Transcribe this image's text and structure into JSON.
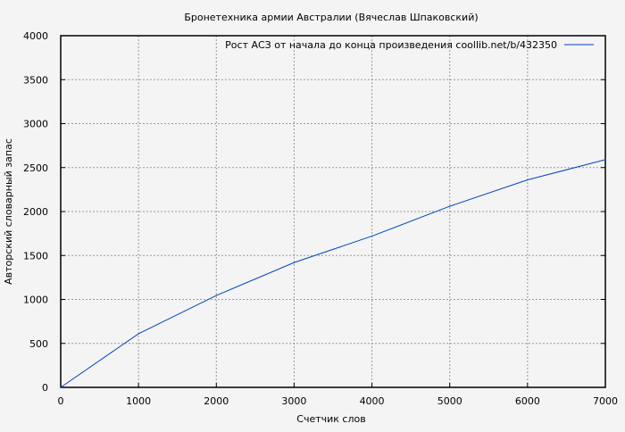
{
  "chart_data": {
    "type": "line",
    "title": "Бронетехника армии Австралии (Вячеслав Шпаковский)",
    "xlabel": "Счетчик слов",
    "ylabel": "Авторский словарный запас",
    "xlim": [
      0,
      7000
    ],
    "ylim": [
      0,
      4000
    ],
    "xticks": [
      0,
      1000,
      2000,
      3000,
      4000,
      5000,
      6000,
      7000
    ],
    "yticks": [
      0,
      500,
      1000,
      1500,
      2000,
      2500,
      3000,
      3500,
      4000
    ],
    "grid": true,
    "legend_position": "top-right",
    "series": [
      {
        "name": "Рост АСЗ от начала до конца произведения coollib.net/b/432350",
        "color": "#0044bb",
        "x": [
          0,
          1000,
          2000,
          3000,
          4000,
          5000,
          6000,
          7000
        ],
        "y": [
          0,
          610,
          1045,
          1420,
          1720,
          2060,
          2360,
          2590
        ]
      }
    ]
  }
}
